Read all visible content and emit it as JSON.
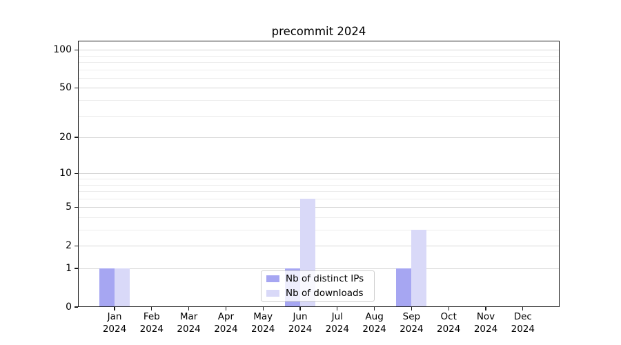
{
  "title": "precommit 2024",
  "chart_data": {
    "type": "bar",
    "title": "precommit 2024",
    "categories": [
      "Jan 2024",
      "Feb 2024",
      "Mar 2024",
      "Apr 2024",
      "May 2024",
      "Jun 2024",
      "Jul 2024",
      "Aug 2024",
      "Sep 2024",
      "Oct 2024",
      "Nov 2024",
      "Dec 2024"
    ],
    "x_tick_months": [
      "Jan",
      "Feb",
      "Mar",
      "Apr",
      "May",
      "Jun",
      "Jul",
      "Aug",
      "Sep",
      "Oct",
      "Nov",
      "Dec"
    ],
    "x_tick_year": "2024",
    "series": [
      {
        "name": "Nb of distinct IPs",
        "color": "#a6a6f2",
        "values": [
          1,
          0,
          0,
          0,
          0,
          1,
          0,
          0,
          1,
          0,
          0,
          0
        ]
      },
      {
        "name": "Nb of downloads",
        "color": "#d9d9f8",
        "values": [
          1,
          0,
          0,
          0,
          0,
          6,
          0,
          0,
          3,
          0,
          0,
          0
        ]
      }
    ],
    "y_axis": {
      "scale": "log1p",
      "major_ticks": [
        0,
        1,
        2,
        5,
        10,
        20,
        50,
        100
      ],
      "minor_gridlines": [
        3,
        4,
        6,
        7,
        8,
        9,
        30,
        40,
        60,
        70,
        80,
        90
      ],
      "ylim": [
        0,
        116
      ]
    },
    "grid": true,
    "legend_position": "lower-center-inside",
    "background_color": "#ffffff",
    "major_grid_color": "#d6d6d6",
    "minor_grid_color": "#ececec"
  }
}
